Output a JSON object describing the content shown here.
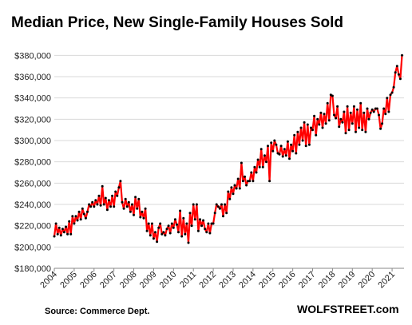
{
  "chart_data": {
    "type": "line",
    "title": "Median Price, New Single-Family Houses Sold",
    "source": "Source: Commerce Dept.",
    "brand": "WOLFSTREET.com",
    "ylim": [
      180000,
      390000
    ],
    "yticks": [
      180000,
      200000,
      220000,
      240000,
      260000,
      280000,
      300000,
      320000,
      340000,
      360000,
      380000
    ],
    "ytick_labels": [
      "$180,000",
      "$200,000",
      "$220,000",
      "$240,000",
      "$260,000",
      "$280,000",
      "$300,000",
      "$320,000",
      "$340,000",
      "$360,000",
      "$380,000"
    ],
    "xticks": [
      2004,
      2005,
      2006,
      2007,
      2008,
      2009,
      2010,
      2011,
      2012,
      2013,
      2014,
      2015,
      2016,
      2017,
      2018,
      2019,
      2020,
      2021
    ],
    "xtick_labels": [
      "2004",
      "2005",
      "2006",
      "2007",
      "2008",
      "2009",
      "2010",
      "2011",
      "2012",
      "2013",
      "2014",
      "2015",
      "2016",
      "2017",
      "2018",
      "2019",
      "2020",
      "2021"
    ],
    "xlim": [
      2004,
      2021.6
    ],
    "grid": true,
    "line_color": "#ff0000",
    "marker_color": "#000000",
    "series": [
      {
        "x": [
          2004.0,
          2004.083,
          2004.167,
          2004.25,
          2004.333,
          2004.417,
          2004.5,
          2004.583,
          2004.667,
          2004.75,
          2004.833,
          2004.917,
          2005.0,
          2005.083,
          2005.167,
          2005.25,
          2005.333,
          2005.417,
          2005.5,
          2005.583,
          2005.667,
          2005.75,
          2005.833,
          2005.917,
          2006.0,
          2006.083,
          2006.167,
          2006.25,
          2006.333,
          2006.417,
          2006.5,
          2006.583,
          2006.667,
          2006.75,
          2006.833,
          2006.917,
          2007.0,
          2007.083,
          2007.167,
          2007.25,
          2007.333,
          2007.417,
          2007.5,
          2007.583,
          2007.667,
          2007.75,
          2007.833,
          2007.917,
          2008.0,
          2008.083,
          2008.167,
          2008.25,
          2008.333,
          2008.417,
          2008.5,
          2008.583,
          2008.667,
          2008.75,
          2008.833,
          2008.917,
          2009.0,
          2009.083,
          2009.167,
          2009.25,
          2009.333,
          2009.417,
          2009.5,
          2009.583,
          2009.667,
          2009.75,
          2009.833,
          2009.917,
          2010.0,
          2010.083,
          2010.167,
          2010.25,
          2010.333,
          2010.417,
          2010.5,
          2010.583,
          2010.667,
          2010.75,
          2010.833,
          2010.917,
          2011.0,
          2011.083,
          2011.167,
          2011.25,
          2011.333,
          2011.417,
          2011.5,
          2011.583,
          2011.667,
          2011.75,
          2011.833,
          2011.917,
          2012.0,
          2012.083,
          2012.167,
          2012.25,
          2012.333,
          2012.417,
          2012.5,
          2012.583,
          2012.667,
          2012.75,
          2012.833,
          2012.917,
          2013.0,
          2013.083,
          2013.167,
          2013.25,
          2013.333,
          2013.417,
          2013.5,
          2013.583,
          2013.667,
          2013.75,
          2013.833,
          2013.917,
          2014.0,
          2014.083,
          2014.167,
          2014.25,
          2014.333,
          2014.417,
          2014.5,
          2014.583,
          2014.667,
          2014.75,
          2014.833,
          2014.917,
          2015.0,
          2015.083,
          2015.167,
          2015.25,
          2015.333,
          2015.417,
          2015.5,
          2015.583,
          2015.667,
          2015.75,
          2015.833,
          2015.917,
          2016.0,
          2016.083,
          2016.167,
          2016.25,
          2016.333,
          2016.417,
          2016.5,
          2016.583,
          2016.667,
          2016.75,
          2016.833,
          2016.917,
          2017.0,
          2017.083,
          2017.167,
          2017.25,
          2017.333,
          2017.417,
          2017.5,
          2017.583,
          2017.667,
          2017.75,
          2017.833,
          2017.917,
          2018.0,
          2018.083,
          2018.167,
          2018.25,
          2018.333,
          2018.417,
          2018.5,
          2018.583,
          2018.667,
          2018.75,
          2018.833,
          2018.917,
          2019.0,
          2019.083,
          2019.167,
          2019.25,
          2019.333,
          2019.417,
          2019.5,
          2019.583,
          2019.667,
          2019.75,
          2019.833,
          2019.917,
          2020.0,
          2020.083,
          2020.167,
          2020.25,
          2020.333,
          2020.417,
          2020.5,
          2020.583,
          2020.667,
          2020.75,
          2020.833,
          2020.917,
          2021.0,
          2021.083,
          2021.167,
          2021.25,
          2021.333,
          2021.417,
          2021.5
        ],
        "values": [
          210000,
          222000,
          212000,
          218000,
          211000,
          217000,
          214000,
          219000,
          212000,
          224000,
          212000,
          229000,
          222000,
          229000,
          225000,
          233000,
          226000,
          236000,
          231000,
          227000,
          233000,
          240000,
          238000,
          242000,
          238000,
          244000,
          240000,
          248000,
          239000,
          257000,
          240000,
          246000,
          235000,
          244000,
          238000,
          248000,
          238000,
          252000,
          248000,
          256000,
          262000,
          242000,
          236000,
          245000,
          238000,
          242000,
          233000,
          240000,
          230000,
          247000,
          236000,
          245000,
          228000,
          233000,
          227000,
          236000,
          215000,
          222000,
          211000,
          222000,
          208000,
          214000,
          205000,
          218000,
          222000,
          212000,
          214000,
          211000,
          217000,
          220000,
          213000,
          222000,
          218000,
          226000,
          221000,
          214000,
          234000,
          210000,
          227000,
          212000,
          222000,
          204000,
          232000,
          220000,
          240000,
          226000,
          240000,
          215000,
          226000,
          220000,
          225000,
          217000,
          214000,
          222000,
          213000,
          222000,
          222000,
          232000,
          240000,
          238000,
          236000,
          240000,
          229000,
          240000,
          232000,
          252000,
          245000,
          256000,
          250000,
          258000,
          255000,
          264000,
          255000,
          279000,
          262000,
          266000,
          258000,
          262000,
          262000,
          270000,
          262000,
          275000,
          270000,
          282000,
          275000,
          292000,
          275000,
          286000,
          280000,
          295000,
          262000,
          298000,
          290000,
          300000,
          296000,
          288000,
          287000,
          295000,
          285000,
          292000,
          286000,
          299000,
          283000,
          296000,
          290000,
          305000,
          288000,
          308000,
          296000,
          312000,
          300000,
          317000,
          295000,
          315000,
          296000,
          312000,
          310000,
          323000,
          305000,
          320000,
          315000,
          326000,
          312000,
          325000,
          316000,
          335000,
          319000,
          343000,
          342000,
          324000,
          321000,
          332000,
          313000,
          320000,
          317000,
          327000,
          307000,
          332000,
          310000,
          326000,
          316000,
          332000,
          308000,
          329000,
          312000,
          335000,
          310000,
          326000,
          308000,
          330000,
          320000,
          326000,
          329000,
          327000,
          330000,
          330000,
          324000,
          311000,
          316000,
          330000,
          325000,
          340000,
          327000,
          343000,
          345000,
          350000,
          364000,
          370000,
          362000,
          358000,
          380000
        ]
      }
    ]
  }
}
